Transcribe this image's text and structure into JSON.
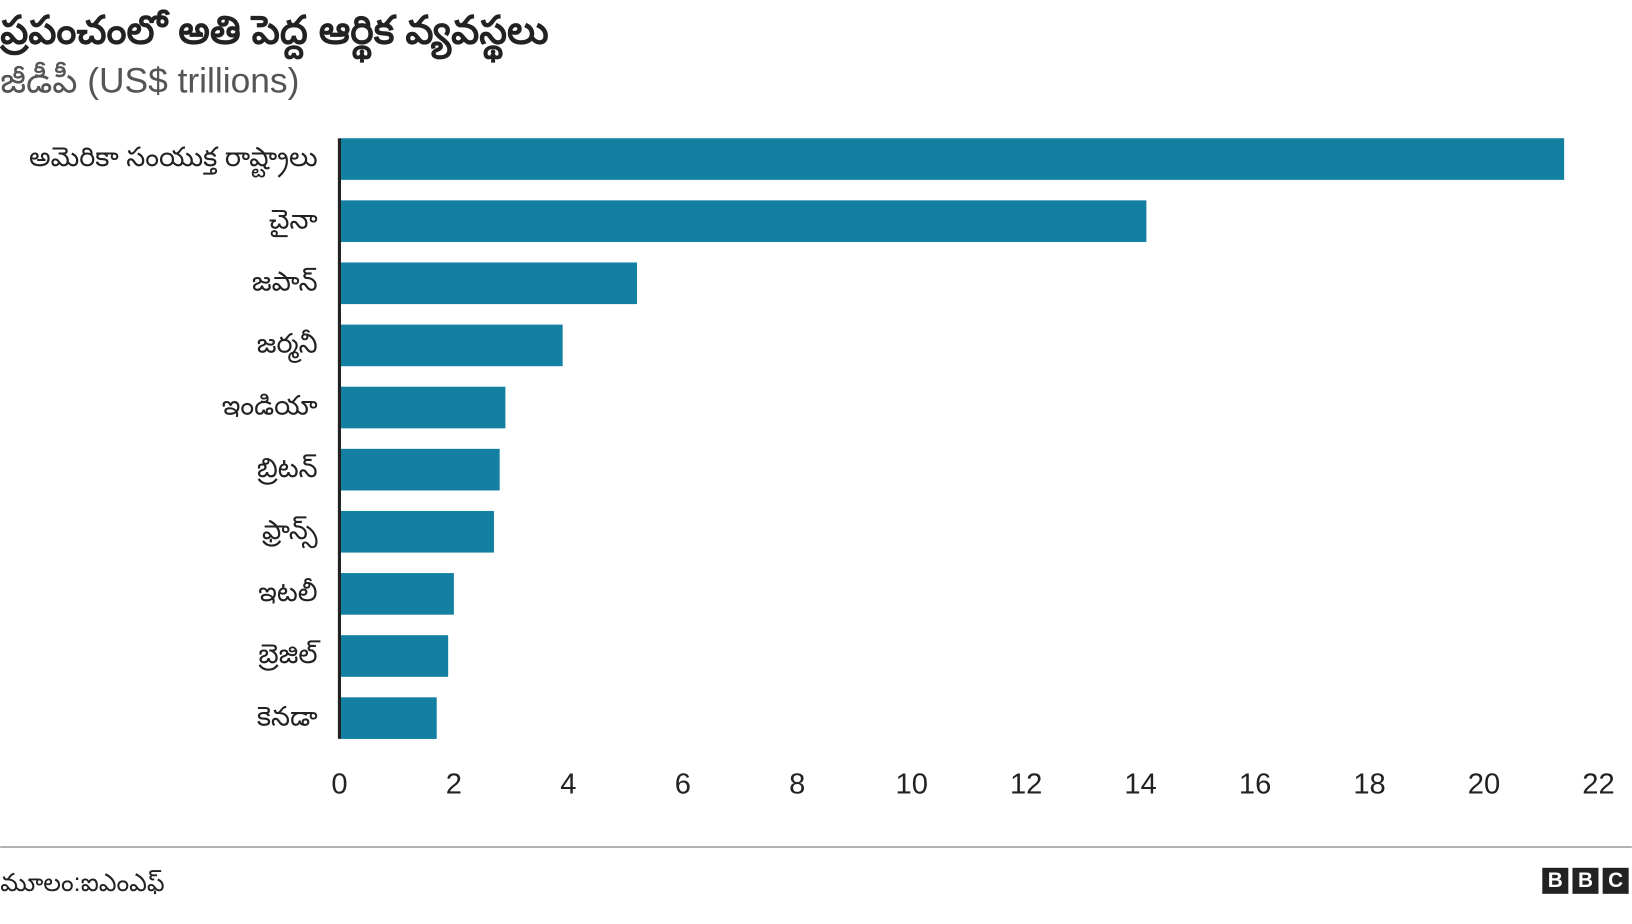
{
  "chart_data": {
    "type": "bar",
    "orientation": "horizontal",
    "title": "ప్రపంచంలో అతి పెద్ద ఆర్థిక వ్యవస్థలు",
    "subtitle": "జీడీపీ (US$ trillions)",
    "categories": [
      "అమెరికా సంయుక్త రాష్ట్రాలు",
      "చైనా",
      "జపాన్",
      "జర్మనీ",
      "ఇండియా",
      "బ్రిటన్",
      "ఫ్రాన్స్",
      "ఇటలీ",
      "బ్రెజిల్",
      "కెనడా"
    ],
    "values": [
      21.4,
      14.1,
      5.2,
      3.9,
      2.9,
      2.8,
      2.7,
      2.0,
      1.9,
      1.7
    ],
    "color": "#1380a1",
    "xlim": [
      0,
      22
    ],
    "xticks": [
      0,
      2,
      4,
      6,
      8,
      10,
      12,
      14,
      16,
      18,
      20,
      22
    ],
    "grid": false,
    "source": "మూలం:ఐఎంఎఫ్",
    "logo": [
      "B",
      "B",
      "C"
    ]
  }
}
